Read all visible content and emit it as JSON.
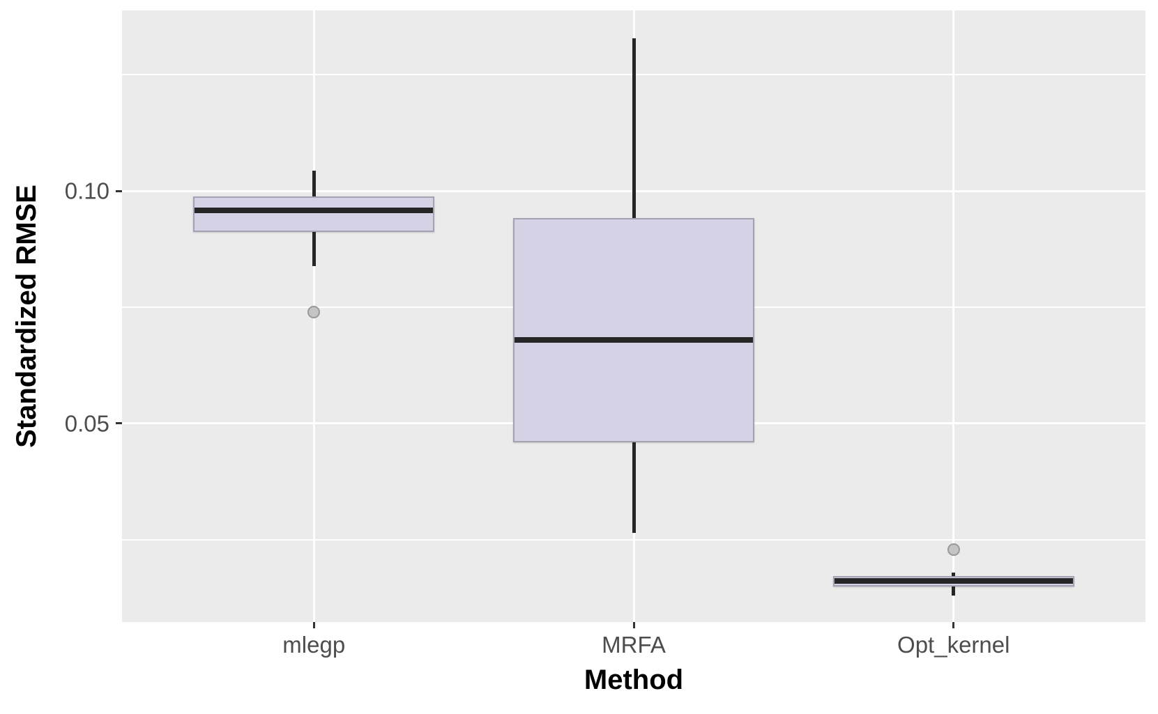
{
  "chart_data": {
    "type": "boxplot",
    "title": "",
    "xlabel": "Method",
    "ylabel": "Standardized RMSE",
    "categories": [
      "mlegp",
      "MRFA",
      "Opt_kernel"
    ],
    "series": [
      {
        "category": "mlegp",
        "whisker_low": 0.0838,
        "q1": 0.0912,
        "median": 0.0958,
        "q3": 0.0988,
        "whisker_high": 0.1043,
        "outliers": [
          0.074
        ]
      },
      {
        "category": "MRFA",
        "whisker_low": 0.0265,
        "q1": 0.046,
        "median": 0.068,
        "q3": 0.0942,
        "whisker_high": 0.1328,
        "outliers": []
      },
      {
        "category": "Opt_kernel",
        "whisker_low": 0.013,
        "q1": 0.015,
        "median": 0.0162,
        "q3": 0.0172,
        "whisker_high": 0.018,
        "outliers": [
          0.0229
        ]
      }
    ],
    "y_axis": {
      "ticks": [
        0.05,
        0.1
      ],
      "tick_labels": [
        "0.05",
        "0.10"
      ],
      "minor_ticks": [
        0.025,
        0.075,
        0.125
      ],
      "ylim": [
        0.0073,
        0.1388
      ]
    },
    "x_axis": {
      "tick_labels": [
        "mlegp",
        "MRFA",
        "Opt_kernel"
      ]
    },
    "grid": true,
    "legend": null,
    "style": {
      "panel_bg": "#ebebeb",
      "grid_color": "#ffffff",
      "box_fill": "#d6d2e6",
      "box_border": "#a4a1b2",
      "median_color": "#262626",
      "whisker_color": "#262626",
      "outlier_fill": "#c4c4c4",
      "outlier_stroke": "#999999",
      "tick_label_color": "#4d4d4d",
      "axis_title_color": "#000000"
    }
  }
}
